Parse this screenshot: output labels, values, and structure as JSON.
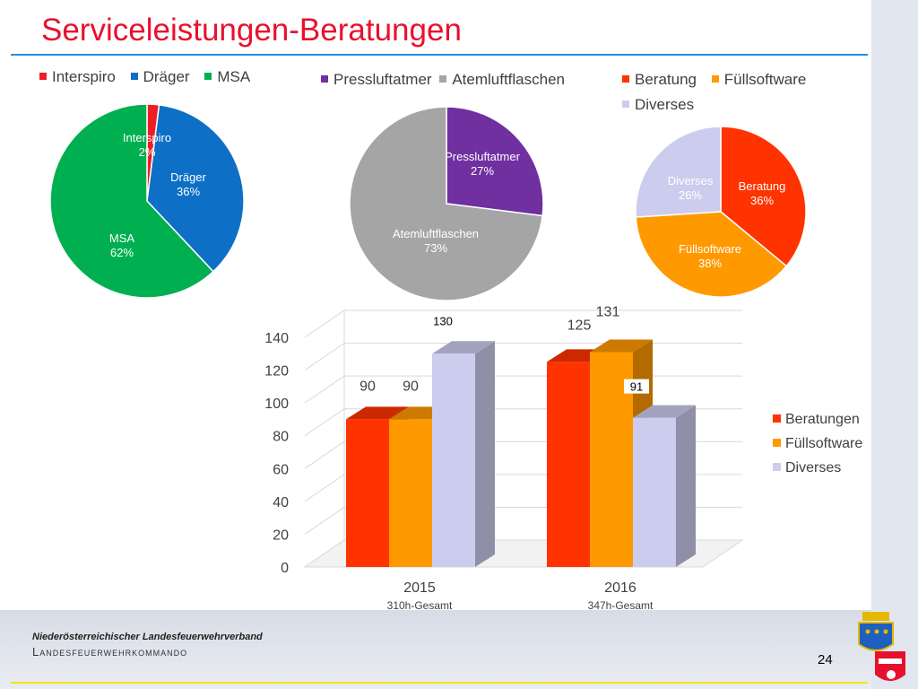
{
  "title": "Serviceleistungen-Beratungen",
  "footer": {
    "org_name": "Niederösterreichischer Landesfeuerwehrverband",
    "org_sub": "Landesfeuerwehrkommando",
    "page_number": "24"
  },
  "colors": {
    "title": "#e8112d",
    "rule_blue": "#1f8fe6",
    "rule_yellow": "#f4e600"
  },
  "chart_data": [
    {
      "type": "pie",
      "labels": [
        "Interspiro",
        "Dräger",
        "MSA"
      ],
      "values": [
        2,
        36,
        62
      ],
      "value_labels": [
        "2%",
        "36%",
        "62%"
      ],
      "colors": [
        "#ee1c25",
        "#0d6fc6",
        "#00b050"
      ],
      "legend": "top"
    },
    {
      "type": "pie",
      "labels": [
        "Pressluftatmer",
        "Atemluftflaschen"
      ],
      "values": [
        27,
        73
      ],
      "value_labels": [
        "27%",
        "73%"
      ],
      "colors": [
        "#7030a0",
        "#a5a5a5"
      ],
      "legend": "top"
    },
    {
      "type": "pie",
      "labels": [
        "Beratung",
        "Füllsoftware",
        "Diverses"
      ],
      "values": [
        36,
        38,
        26
      ],
      "value_labels": [
        "36%",
        "38%",
        "26%"
      ],
      "colors": [
        "#ff3300",
        "#ff9900",
        "#ccccee"
      ],
      "legend": "top"
    },
    {
      "type": "bar",
      "categories": [
        "2015",
        "2016"
      ],
      "category_subtitles": [
        "310h-Gesamt",
        "347h-Gesamt"
      ],
      "series": [
        {
          "name": "Beratungen",
          "values": [
            90,
            125
          ],
          "color": "#ff3300"
        },
        {
          "name": "Füllsoftware",
          "values": [
            90,
            131
          ],
          "color": "#ff9900"
        },
        {
          "name": "Diverses",
          "values": [
            130,
            91
          ],
          "color": "#ccccee"
        }
      ],
      "ylim": [
        0,
        140
      ],
      "yticks": [
        "0",
        "20",
        "40",
        "60",
        "80",
        "100",
        "120",
        "140"
      ],
      "legend": "right",
      "three_d": true
    }
  ]
}
